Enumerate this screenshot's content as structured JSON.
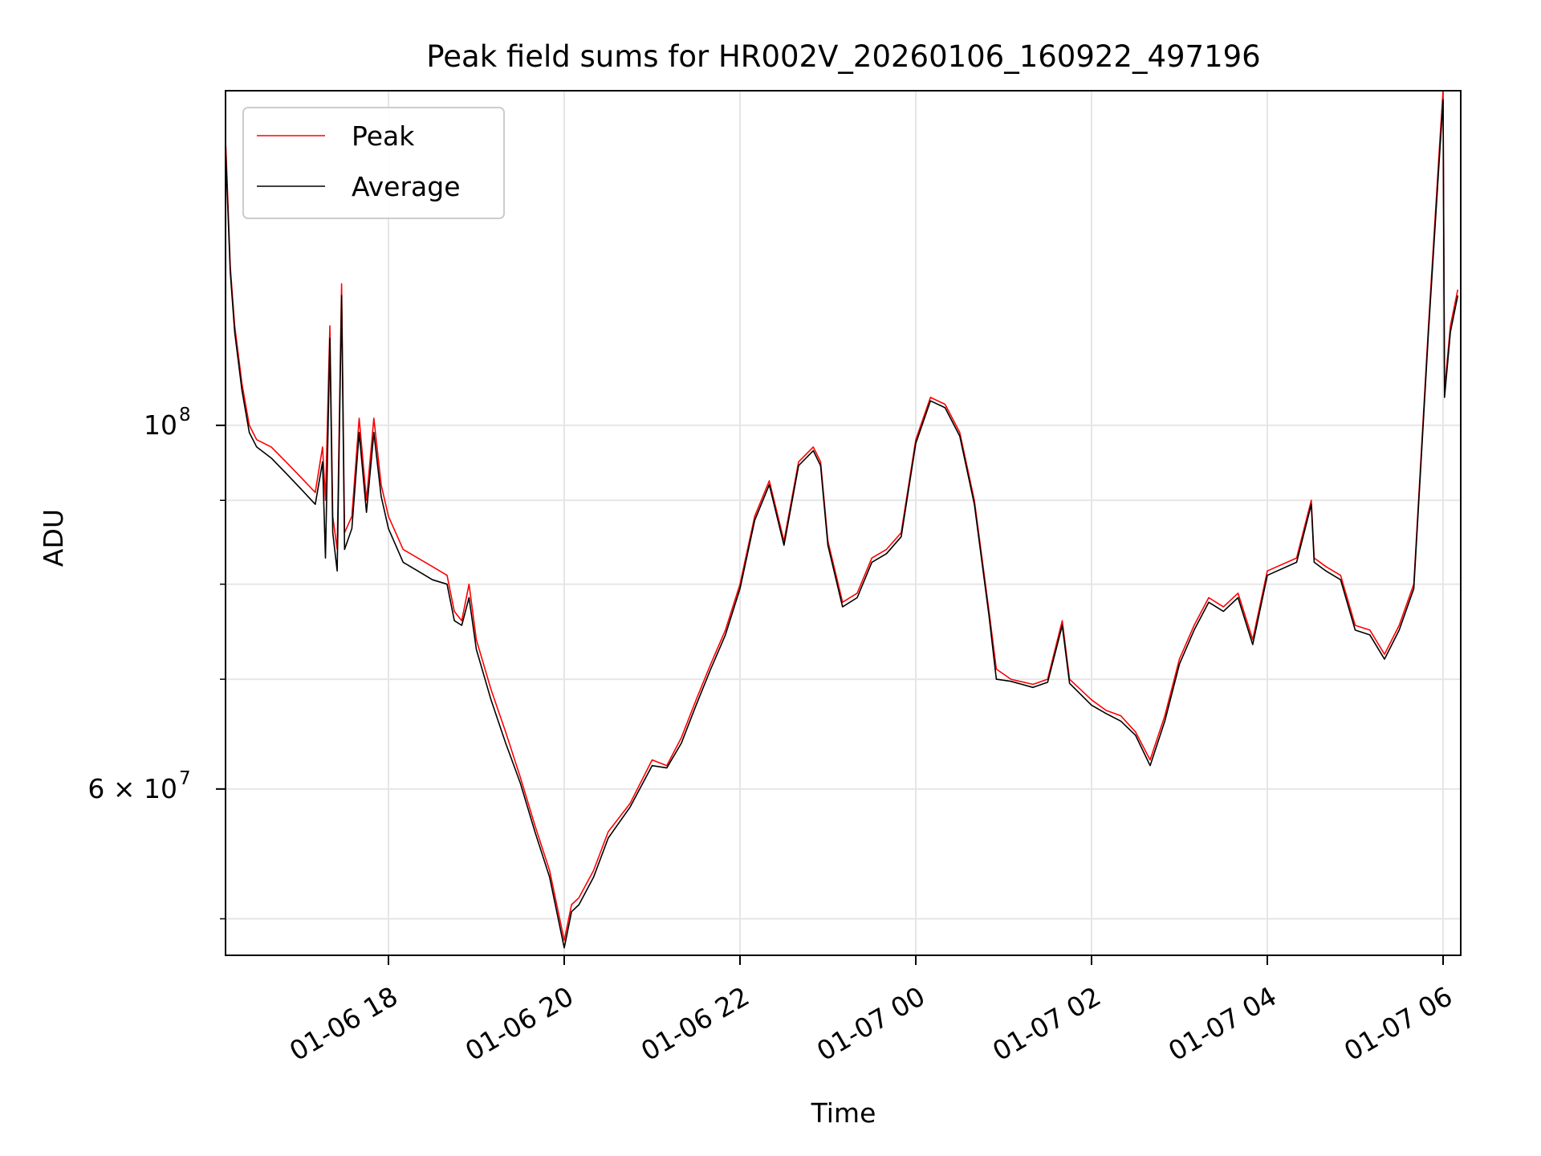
{
  "chart_data": {
    "type": "line",
    "title": "Peak field sums for HR002V_20260106_160922_497196",
    "xlabel": "Time",
    "ylabel": "ADU",
    "yscale": "log",
    "xlim": [
      "2026-01-06 16:09",
      "2026-01-07 06:00"
    ],
    "ylim": [
      47500000,
      160000000
    ],
    "grid": true,
    "legend_position": "top-left",
    "x_ticks": [
      {
        "t": "2026-01-06 18:00",
        "label": "01-06 18"
      },
      {
        "t": "2026-01-06 20:00",
        "label": "01-06 20"
      },
      {
        "t": "2026-01-06 22:00",
        "label": "01-06 22"
      },
      {
        "t": "2026-01-07 00:00",
        "label": "01-07 00"
      },
      {
        "t": "2026-01-07 02:00",
        "label": "01-07 02"
      },
      {
        "t": "2026-01-07 04:00",
        "label": "01-07 04"
      },
      {
        "t": "2026-01-07 06:00",
        "label": "01-07 06"
      }
    ],
    "y_major_ticks": [
      {
        "value": 60000000,
        "label": "6 × 10",
        "exp": "7"
      },
      {
        "value": 100000000,
        "label": "10",
        "exp": "8"
      }
    ],
    "y_minor_ticks": [
      50000000,
      70000000,
      80000000,
      90000000
    ],
    "series": [
      {
        "name": "Peak",
        "color": "#ff0000",
        "points": [
          [
            "2026-01-06 16:09",
            148000000
          ],
          [
            "2026-01-06 16:12",
            125000000
          ],
          [
            "2026-01-06 16:15",
            115000000
          ],
          [
            "2026-01-06 16:20",
            106000000
          ],
          [
            "2026-01-06 16:25",
            100000000
          ],
          [
            "2026-01-06 16:30",
            98000000
          ],
          [
            "2026-01-06 16:40",
            97000000
          ],
          [
            "2026-01-06 16:50",
            95000000
          ],
          [
            "2026-01-06 17:00",
            93000000
          ],
          [
            "2026-01-06 17:10",
            91000000
          ],
          [
            "2026-01-06 17:15",
            97000000
          ],
          [
            "2026-01-06 17:17",
            90000000
          ],
          [
            "2026-01-06 17:20",
            115000000
          ],
          [
            "2026-01-06 17:22",
            88000000
          ],
          [
            "2026-01-06 17:25",
            84000000
          ],
          [
            "2026-01-06 17:28",
            122000000
          ],
          [
            "2026-01-06 17:30",
            86000000
          ],
          [
            "2026-01-06 17:35",
            88000000
          ],
          [
            "2026-01-06 17:40",
            101000000
          ],
          [
            "2026-01-06 17:45",
            90000000
          ],
          [
            "2026-01-06 17:50",
            101000000
          ],
          [
            "2026-01-06 17:55",
            92000000
          ],
          [
            "2026-01-06 18:00",
            88000000
          ],
          [
            "2026-01-06 18:10",
            84000000
          ],
          [
            "2026-01-06 18:20",
            83000000
          ],
          [
            "2026-01-06 18:30",
            82000000
          ],
          [
            "2026-01-06 18:40",
            81000000
          ],
          [
            "2026-01-06 18:45",
            77000000
          ],
          [
            "2026-01-06 18:50",
            76000000
          ],
          [
            "2026-01-06 18:55",
            80000000
          ],
          [
            "2026-01-06 19:00",
            74000000
          ],
          [
            "2026-01-06 19:10",
            69000000
          ],
          [
            "2026-01-06 19:20",
            65000000
          ],
          [
            "2026-01-06 19:30",
            61000000
          ],
          [
            "2026-01-06 19:40",
            57000000
          ],
          [
            "2026-01-06 19:50",
            53500000
          ],
          [
            "2026-01-06 20:00",
            48500000
          ],
          [
            "2026-01-06 20:05",
            51000000
          ],
          [
            "2026-01-06 20:10",
            51500000
          ],
          [
            "2026-01-06 20:20",
            53500000
          ],
          [
            "2026-01-06 20:30",
            56500000
          ],
          [
            "2026-01-06 20:45",
            58800000
          ],
          [
            "2026-01-06 21:00",
            62500000
          ],
          [
            "2026-01-06 21:10",
            62000000
          ],
          [
            "2026-01-06 21:20",
            64500000
          ],
          [
            "2026-01-06 21:30",
            68000000
          ],
          [
            "2026-01-06 21:40",
            71500000
          ],
          [
            "2026-01-06 21:50",
            75000000
          ],
          [
            "2026-01-06 22:00",
            80000000
          ],
          [
            "2026-01-06 22:10",
            88000000
          ],
          [
            "2026-01-06 22:20",
            92500000
          ],
          [
            "2026-01-06 22:30",
            85000000
          ],
          [
            "2026-01-06 22:40",
            95000000
          ],
          [
            "2026-01-06 22:50",
            97000000
          ],
          [
            "2026-01-06 22:55",
            95000000
          ],
          [
            "2026-01-06 23:00",
            85000000
          ],
          [
            "2026-01-06 23:10",
            78000000
          ],
          [
            "2026-01-06 23:20",
            79000000
          ],
          [
            "2026-01-06 23:30",
            83000000
          ],
          [
            "2026-01-06 23:40",
            84000000
          ],
          [
            "2026-01-06 23:50",
            86000000
          ],
          [
            "2026-01-07 00:00",
            98000000
          ],
          [
            "2026-01-07 00:10",
            104000000
          ],
          [
            "2026-01-07 00:20",
            103000000
          ],
          [
            "2026-01-07 00:30",
            99000000
          ],
          [
            "2026-01-07 00:40",
            90000000
          ],
          [
            "2026-01-07 00:50",
            77000000
          ],
          [
            "2026-01-07 00:55",
            71000000
          ],
          [
            "2026-01-07 01:05",
            70000000
          ],
          [
            "2026-01-07 01:20",
            69500000
          ],
          [
            "2026-01-07 01:30",
            70000000
          ],
          [
            "2026-01-07 01:40",
            76000000
          ],
          [
            "2026-01-07 01:45",
            70000000
          ],
          [
            "2026-01-07 02:00",
            68000000
          ],
          [
            "2026-01-07 02:10",
            67000000
          ],
          [
            "2026-01-07 02:20",
            66500000
          ],
          [
            "2026-01-07 02:30",
            65000000
          ],
          [
            "2026-01-07 02:40",
            62500000
          ],
          [
            "2026-01-07 02:50",
            66500000
          ],
          [
            "2026-01-07 03:00",
            72000000
          ],
          [
            "2026-01-07 03:10",
            75500000
          ],
          [
            "2026-01-07 03:20",
            78500000
          ],
          [
            "2026-01-07 03:30",
            77500000
          ],
          [
            "2026-01-07 03:40",
            79000000
          ],
          [
            "2026-01-07 03:50",
            74000000
          ],
          [
            "2026-01-07 04:00",
            81500000
          ],
          [
            "2026-01-07 04:20",
            83000000
          ],
          [
            "2026-01-07 04:30",
            90000000
          ],
          [
            "2026-01-07 04:32",
            83000000
          ],
          [
            "2026-01-07 04:40",
            82000000
          ],
          [
            "2026-01-07 04:50",
            81000000
          ],
          [
            "2026-01-07 05:00",
            75500000
          ],
          [
            "2026-01-07 05:10",
            75000000
          ],
          [
            "2026-01-07 05:20",
            72500000
          ],
          [
            "2026-01-07 05:30",
            75500000
          ],
          [
            "2026-01-07 05:40",
            80000000
          ],
          [
            "2026-01-07 05:50",
            115000000
          ],
          [
            "2026-01-07 05:58",
            150000000
          ],
          [
            "2026-01-07 06:00",
            160000000
          ],
          [
            "2026-01-07 06:01",
            105000000
          ],
          [
            "2026-01-07 06:05",
            115000000
          ],
          [
            "2026-01-07 06:10",
            121000000
          ]
        ]
      },
      {
        "name": "Average",
        "color": "#000000",
        "points": [
          [
            "2026-01-06 16:09",
            146000000
          ],
          [
            "2026-01-06 16:12",
            124000000
          ],
          [
            "2026-01-06 16:15",
            114000000
          ],
          [
            "2026-01-06 16:20",
            105000000
          ],
          [
            "2026-01-06 16:25",
            99000000
          ],
          [
            "2026-01-06 16:30",
            97000000
          ],
          [
            "2026-01-06 16:40",
            95500000
          ],
          [
            "2026-01-06 16:50",
            93500000
          ],
          [
            "2026-01-06 17:00",
            91500000
          ],
          [
            "2026-01-06 17:10",
            89500000
          ],
          [
            "2026-01-06 17:15",
            95000000
          ],
          [
            "2026-01-06 17:17",
            83000000
          ],
          [
            "2026-01-06 17:20",
            113000000
          ],
          [
            "2026-01-06 17:22",
            86000000
          ],
          [
            "2026-01-06 17:25",
            81500000
          ],
          [
            "2026-01-06 17:28",
            120000000
          ],
          [
            "2026-01-06 17:30",
            84000000
          ],
          [
            "2026-01-06 17:35",
            86500000
          ],
          [
            "2026-01-06 17:40",
            99000000
          ],
          [
            "2026-01-06 17:45",
            88500000
          ],
          [
            "2026-01-06 17:50",
            99000000
          ],
          [
            "2026-01-06 17:55",
            90500000
          ],
          [
            "2026-01-06 18:00",
            86500000
          ],
          [
            "2026-01-06 18:10",
            82500000
          ],
          [
            "2026-01-06 18:20",
            81500000
          ],
          [
            "2026-01-06 18:30",
            80500000
          ],
          [
            "2026-01-06 18:40",
            80000000
          ],
          [
            "2026-01-06 18:45",
            76000000
          ],
          [
            "2026-01-06 18:50",
            75500000
          ],
          [
            "2026-01-06 18:55",
            78500000
          ],
          [
            "2026-01-06 19:00",
            73000000
          ],
          [
            "2026-01-06 19:10",
            68000000
          ],
          [
            "2026-01-06 19:20",
            64000000
          ],
          [
            "2026-01-06 19:30",
            60500000
          ],
          [
            "2026-01-06 19:40",
            56500000
          ],
          [
            "2026-01-06 19:50",
            53000000
          ],
          [
            "2026-01-06 20:00",
            48000000
          ],
          [
            "2026-01-06 20:05",
            50500000
          ],
          [
            "2026-01-06 20:10",
            51000000
          ],
          [
            "2026-01-06 20:20",
            53000000
          ],
          [
            "2026-01-06 20:30",
            56000000
          ],
          [
            "2026-01-06 20:45",
            58500000
          ],
          [
            "2026-01-06 21:00",
            62000000
          ],
          [
            "2026-01-06 21:10",
            61800000
          ],
          [
            "2026-01-06 21:20",
            64000000
          ],
          [
            "2026-01-06 21:30",
            67500000
          ],
          [
            "2026-01-06 21:40",
            71000000
          ],
          [
            "2026-01-06 21:50",
            74500000
          ],
          [
            "2026-01-06 22:00",
            79500000
          ],
          [
            "2026-01-06 22:10",
            87500000
          ],
          [
            "2026-01-06 22:20",
            92000000
          ],
          [
            "2026-01-06 22:30",
            84500000
          ],
          [
            "2026-01-06 22:40",
            94500000
          ],
          [
            "2026-01-06 22:50",
            96500000
          ],
          [
            "2026-01-06 22:55",
            94500000
          ],
          [
            "2026-01-06 23:00",
            84500000
          ],
          [
            "2026-01-06 23:10",
            77500000
          ],
          [
            "2026-01-06 23:20",
            78500000
          ],
          [
            "2026-01-06 23:30",
            82500000
          ],
          [
            "2026-01-06 23:40",
            83500000
          ],
          [
            "2026-01-06 23:50",
            85500000
          ],
          [
            "2026-01-07 00:00",
            97500000
          ],
          [
            "2026-01-07 00:10",
            103500000
          ],
          [
            "2026-01-07 00:20",
            102500000
          ],
          [
            "2026-01-07 00:30",
            98500000
          ],
          [
            "2026-01-07 00:40",
            89500000
          ],
          [
            "2026-01-07 00:50",
            76500000
          ],
          [
            "2026-01-07 00:55",
            70000000
          ],
          [
            "2026-01-07 01:05",
            69800000
          ],
          [
            "2026-01-07 01:20",
            69200000
          ],
          [
            "2026-01-07 01:30",
            69700000
          ],
          [
            "2026-01-07 01:40",
            75500000
          ],
          [
            "2026-01-07 01:45",
            69600000
          ],
          [
            "2026-01-07 02:00",
            67500000
          ],
          [
            "2026-01-07 02:10",
            66700000
          ],
          [
            "2026-01-07 02:20",
            66000000
          ],
          [
            "2026-01-07 02:30",
            64700000
          ],
          [
            "2026-01-07 02:40",
            62000000
          ],
          [
            "2026-01-07 02:50",
            66000000
          ],
          [
            "2026-01-07 03:00",
            71500000
          ],
          [
            "2026-01-07 03:10",
            75000000
          ],
          [
            "2026-01-07 03:20",
            78000000
          ],
          [
            "2026-01-07 03:30",
            77000000
          ],
          [
            "2026-01-07 03:40",
            78500000
          ],
          [
            "2026-01-07 03:50",
            73500000
          ],
          [
            "2026-01-07 04:00",
            81000000
          ],
          [
            "2026-01-07 04:20",
            82500000
          ],
          [
            "2026-01-07 04:30",
            89500000
          ],
          [
            "2026-01-07 04:32",
            82500000
          ],
          [
            "2026-01-07 04:40",
            81500000
          ],
          [
            "2026-01-07 04:50",
            80500000
          ],
          [
            "2026-01-07 05:00",
            75000000
          ],
          [
            "2026-01-07 05:10",
            74500000
          ],
          [
            "2026-01-07 05:20",
            72000000
          ],
          [
            "2026-01-07 05:30",
            75000000
          ],
          [
            "2026-01-07 05:40",
            79500000
          ],
          [
            "2026-01-07 05:50",
            114000000
          ],
          [
            "2026-01-07 05:58",
            148000000
          ],
          [
            "2026-01-07 06:00",
            158000000
          ],
          [
            "2026-01-07 06:01",
            104000000
          ],
          [
            "2026-01-07 06:05",
            114000000
          ],
          [
            "2026-01-07 06:10",
            120000000
          ]
        ]
      }
    ]
  }
}
